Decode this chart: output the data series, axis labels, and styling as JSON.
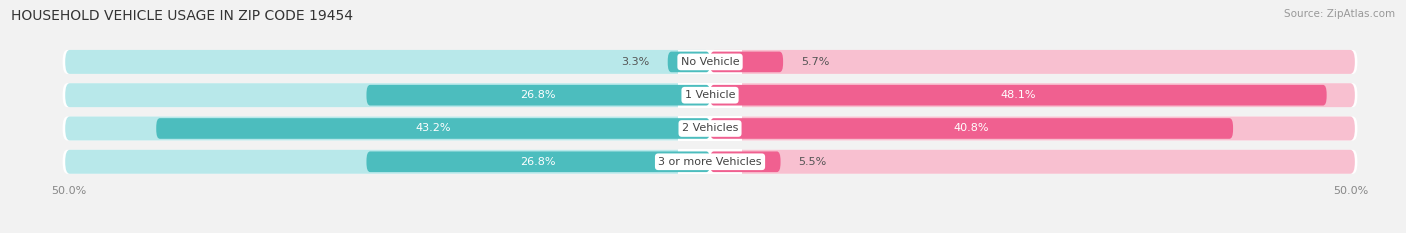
{
  "title": "HOUSEHOLD VEHICLE USAGE IN ZIP CODE 19454",
  "source": "Source: ZipAtlas.com",
  "categories": [
    "No Vehicle",
    "1 Vehicle",
    "2 Vehicles",
    "3 or more Vehicles"
  ],
  "owner_values": [
    3.3,
    26.8,
    43.2,
    26.8
  ],
  "renter_values": [
    5.7,
    48.1,
    40.8,
    5.5
  ],
  "owner_color": "#4cbdbe",
  "renter_color": "#f06090",
  "owner_light_color": "#b8e8ea",
  "renter_light_color": "#f8c0d0",
  "bg_color": "#f2f2f2",
  "bar_row_bg": "#e8e8e8",
  "title_fontsize": 10,
  "source_fontsize": 7.5,
  "label_fontsize": 8,
  "value_fontsize": 8,
  "axis_max": 50.0
}
